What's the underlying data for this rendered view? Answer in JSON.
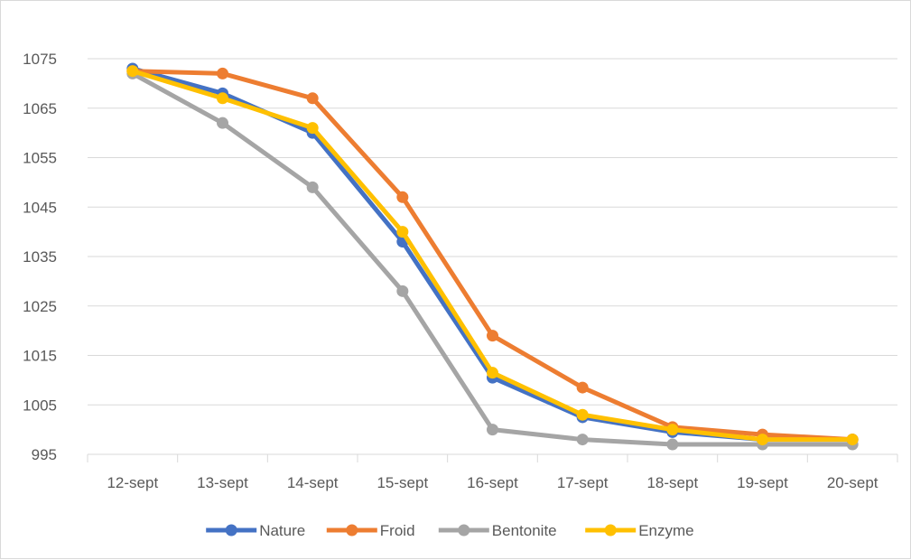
{
  "chart_data": {
    "type": "line",
    "title": "",
    "xlabel": "",
    "ylabel": "",
    "categories": [
      "12-sept",
      "13-sept",
      "14-sept",
      "15-sept",
      "16-sept",
      "17-sept",
      "18-sept",
      "19-sept",
      "20-sept"
    ],
    "y_ticks": [
      "995",
      "1005",
      "1015",
      "1025",
      "1035",
      "1045",
      "1055",
      "1065",
      "1075"
    ],
    "ylim": [
      995,
      1075
    ],
    "grid": true,
    "legend_position": "bottom",
    "series": [
      {
        "name": "Nature",
        "color": "#4472C4",
        "values": [
          1073,
          1068,
          1060,
          1038,
          1010.5,
          1002.5,
          999.5,
          998,
          998
        ]
      },
      {
        "name": "Froid",
        "color": "#ED7D31",
        "values": [
          1072.5,
          1072,
          1067,
          1047,
          1019,
          1008.5,
          1000.5,
          999,
          998
        ]
      },
      {
        "name": "Bentonite",
        "color": "#A5A5A5",
        "values": [
          1072,
          1062,
          1049,
          1028,
          1000,
          998,
          997,
          997,
          997
        ]
      },
      {
        "name": "Enzyme",
        "color": "#FFC000",
        "values": [
          1072.5,
          1067,
          1061,
          1040,
          1011.5,
          1003,
          1000,
          998,
          998
        ]
      }
    ]
  }
}
